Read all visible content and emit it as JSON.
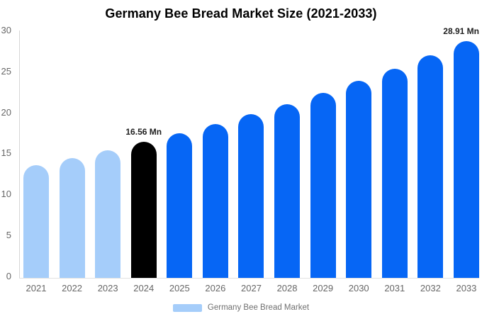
{
  "chart": {
    "title": "Germany Bee Bread Market Size (2021-2033)",
    "legend": {
      "label": "Germany Bee Bread Market",
      "swatch_color": "#A5CDFA"
    }
  },
  "chart_data": {
    "type": "bar",
    "title": "Germany Bee Bread Market Size (2021-2033)",
    "categories": [
      "2021",
      "2022",
      "2023",
      "2024",
      "2025",
      "2026",
      "2027",
      "2028",
      "2029",
      "2030",
      "2031",
      "2032",
      "2033"
    ],
    "values": [
      13.75,
      14.63,
      15.56,
      16.56,
      17.62,
      18.74,
      19.94,
      21.21,
      22.56,
      24.01,
      25.54,
      27.17,
      28.91
    ],
    "unit": "Mn",
    "xlabel": "",
    "ylabel": "",
    "ylim": [
      0,
      30
    ],
    "yticks": [
      0,
      5,
      10,
      15,
      20,
      25,
      30
    ],
    "grid": false,
    "legend_position": "bottom",
    "legend_entries": [
      "Germany Bee Bread Market"
    ],
    "bar_colors": [
      "#A5CDFA",
      "#A5CDFA",
      "#A5CDFA",
      "#000000",
      "#0666F5",
      "#0666F5",
      "#0666F5",
      "#0666F5",
      "#0666F5",
      "#0666F5",
      "#0666F5",
      "#0666F5",
      "#0666F5"
    ],
    "color_roles": {
      "historical": "#A5CDFA",
      "base_year": "#000000",
      "forecast": "#0666F5"
    },
    "annotations": [
      {
        "category": "2024",
        "text": "16.56 Mn"
      },
      {
        "category": "2033",
        "text": "28.91 Mn"
      }
    ]
  }
}
